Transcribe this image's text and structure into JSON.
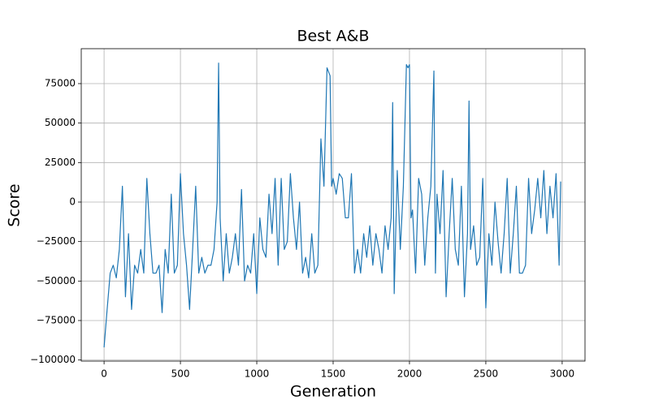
{
  "chart_data": {
    "type": "line",
    "title": "Best A&B",
    "x_label": "Generation",
    "y_label": "Score",
    "x": [
      0,
      20,
      40,
      60,
      80,
      100,
      120,
      140,
      160,
      180,
      200,
      220,
      240,
      260,
      280,
      300,
      320,
      340,
      360,
      380,
      400,
      420,
      440,
      460,
      480,
      500,
      520,
      540,
      560,
      580,
      600,
      620,
      640,
      660,
      680,
      700,
      720,
      740,
      750,
      760,
      780,
      800,
      820,
      840,
      860,
      880,
      900,
      920,
      940,
      960,
      980,
      1000,
      1020,
      1040,
      1060,
      1080,
      1100,
      1120,
      1140,
      1160,
      1180,
      1200,
      1220,
      1240,
      1260,
      1280,
      1300,
      1320,
      1340,
      1360,
      1380,
      1400,
      1420,
      1440,
      1460,
      1480,
      1490,
      1500,
      1520,
      1540,
      1560,
      1580,
      1600,
      1620,
      1640,
      1660,
      1680,
      1700,
      1720,
      1740,
      1760,
      1780,
      1800,
      1820,
      1840,
      1860,
      1880,
      1890,
      1900,
      1920,
      1940,
      1960,
      1980,
      1990,
      2000,
      2010,
      2020,
      2040,
      2060,
      2080,
      2100,
      2120,
      2140,
      2160,
      2170,
      2180,
      2200,
      2220,
      2240,
      2260,
      2280,
      2300,
      2320,
      2340,
      2360,
      2380,
      2390,
      2400,
      2420,
      2440,
      2460,
      2480,
      2500,
      2520,
      2540,
      2560,
      2580,
      2600,
      2620,
      2640,
      2660,
      2680,
      2700,
      2720,
      2740,
      2760,
      2780,
      2800,
      2820,
      2840,
      2860,
      2880,
      2900,
      2920,
      2940,
      2960,
      2980,
      2990
    ],
    "values": [
      -92000,
      -68000,
      -45000,
      -40000,
      -48000,
      -30000,
      10000,
      -60000,
      -20000,
      -68000,
      -40000,
      -45000,
      -30000,
      -45000,
      15000,
      -20000,
      -45000,
      -45000,
      -40000,
      -70000,
      -30000,
      -45000,
      5000,
      -45000,
      -40000,
      18000,
      -20000,
      -40000,
      -68000,
      -30000,
      10000,
      -45000,
      -35000,
      -45000,
      -40000,
      -40000,
      -30000,
      0,
      88000,
      -10000,
      -50000,
      -20000,
      -45000,
      -35000,
      -20000,
      -40000,
      8000,
      -50000,
      -40000,
      -45000,
      -20000,
      -58000,
      -10000,
      -30000,
      -35000,
      5000,
      -20000,
      15000,
      -40000,
      15000,
      -30000,
      -25000,
      18000,
      -10000,
      -30000,
      0,
      -45000,
      -35000,
      -48000,
      -20000,
      -45000,
      -40000,
      40000,
      10000,
      85000,
      80000,
      10000,
      15000,
      5000,
      18000,
      15000,
      -10000,
      -10000,
      18000,
      -45000,
      -30000,
      -45000,
      -20000,
      -35000,
      -15000,
      -40000,
      -20000,
      -30000,
      -45000,
      -15000,
      -30000,
      -10000,
      63000,
      -58000,
      20000,
      -30000,
      10000,
      87000,
      85000,
      87000,
      -10000,
      -5000,
      -45000,
      15000,
      5000,
      -40000,
      -10000,
      10000,
      83000,
      -45000,
      5000,
      -20000,
      20000,
      -60000,
      -20000,
      15000,
      -30000,
      -40000,
      10000,
      -60000,
      -20000,
      64000,
      -30000,
      -15000,
      -40000,
      -35000,
      15000,
      -67000,
      -20000,
      -40000,
      0,
      -25000,
      -45000,
      -20000,
      15000,
      -45000,
      -20000,
      10000,
      -45000,
      -45000,
      -40000,
      15000,
      -20000,
      -5000,
      15000,
      -10000,
      20000,
      -20000,
      10000,
      -10000,
      18000,
      -40000,
      13000
    ],
    "color": "#1f77b4",
    "xlim": [
      -149.5,
      3149.5
    ],
    "xticks": [
      0,
      500,
      1000,
      1500,
      2000,
      2500,
      3000
    ],
    "ylim": [
      -100700,
      97100
    ],
    "yticks": [
      {
        "value": -100000,
        "label": "−100000"
      },
      {
        "value": -75000,
        "label": "−75000"
      },
      {
        "value": -50000,
        "label": "−50000"
      },
      {
        "value": -25000,
        "label": "−25000"
      },
      0,
      25000,
      50000,
      75000
    ],
    "grid": true
  }
}
